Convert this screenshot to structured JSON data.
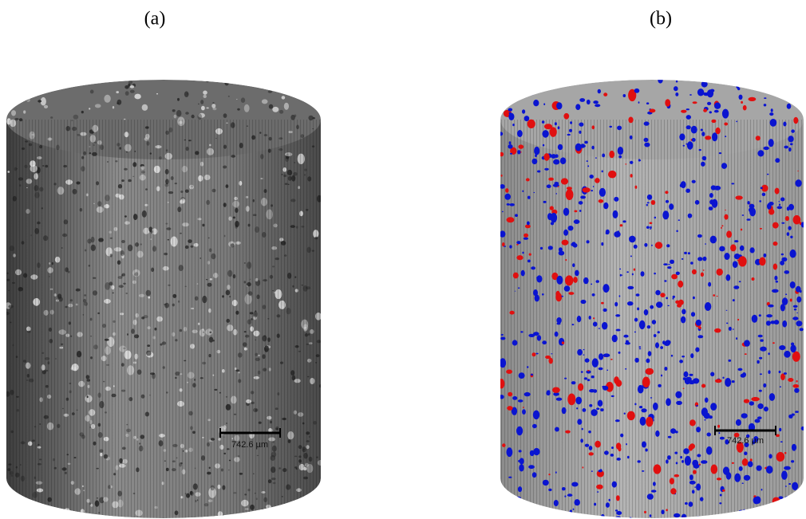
{
  "panels": [
    {
      "label": "(a)",
      "scale_bar": "742.6 µm"
    },
    {
      "label": "(b)",
      "scale_bar": "742.6 µm"
    }
  ]
}
